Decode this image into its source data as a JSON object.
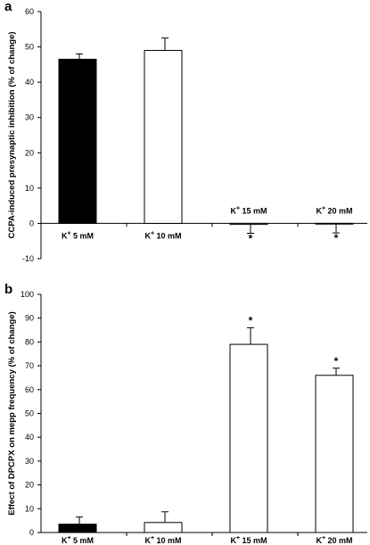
{
  "chart_data": [
    {
      "panel_label": "a",
      "type": "bar",
      "ylabel": "CCPA-induced presynaptic inhibition (% of change)",
      "ylim": [
        -10,
        60
      ],
      "yticks": [
        "-10",
        "0",
        "10",
        "20",
        "30",
        "40",
        "50",
        "60"
      ],
      "categories": [
        "K+ 5 mM",
        "K+ 10 mM",
        "K+ 15 mM",
        "K+ 20 mM"
      ],
      "category_labels": [
        {
          "base": "K",
          "sup": "+",
          "rest": " 5 mM"
        },
        {
          "base": "K",
          "sup": "+",
          "rest": " 10 mM"
        },
        {
          "base": "K",
          "sup": "+",
          "rest": " 15 mM"
        },
        {
          "base": "K",
          "sup": "+",
          "rest": " 20 mM"
        }
      ],
      "values": [
        46.5,
        49.0,
        -0.3,
        -0.2
      ],
      "errors": [
        1.5,
        3.5,
        2.5,
        2.5
      ],
      "fills": [
        "#000000",
        "#ffffff",
        "#ffffff",
        "#ffffff"
      ],
      "significance": [
        "",
        "",
        "*",
        "*"
      ],
      "category_label_position": "zero-line"
    },
    {
      "panel_label": "b",
      "type": "bar",
      "ylabel": "Effect of DPCPX on mepp frequency (% of change)",
      "ylim": [
        0,
        100
      ],
      "yticks": [
        "0",
        "10",
        "20",
        "30",
        "40",
        "50",
        "60",
        "70",
        "80",
        "90",
        "100"
      ],
      "categories": [
        "K+ 5 mM",
        "K+ 10 mM",
        "K+ 15 mM",
        "K+ 20 mM"
      ],
      "category_labels": [
        {
          "base": "K",
          "sup": "+",
          "rest": " 5 mM"
        },
        {
          "base": "K",
          "sup": "+",
          "rest": " 10 mM"
        },
        {
          "base": "K",
          "sup": "+",
          "rest": " 15 mM"
        },
        {
          "base": "K",
          "sup": "+",
          "rest": " 20 mM"
        }
      ],
      "values": [
        3.5,
        4.2,
        79.0,
        66.0
      ],
      "errors": [
        3.0,
        4.5,
        7.0,
        3.0
      ],
      "fills": [
        "#000000",
        "#ffffff",
        "#ffffff",
        "#ffffff"
      ],
      "significance": [
        "",
        "",
        "*",
        "*"
      ],
      "category_label_position": "bottom"
    }
  ]
}
